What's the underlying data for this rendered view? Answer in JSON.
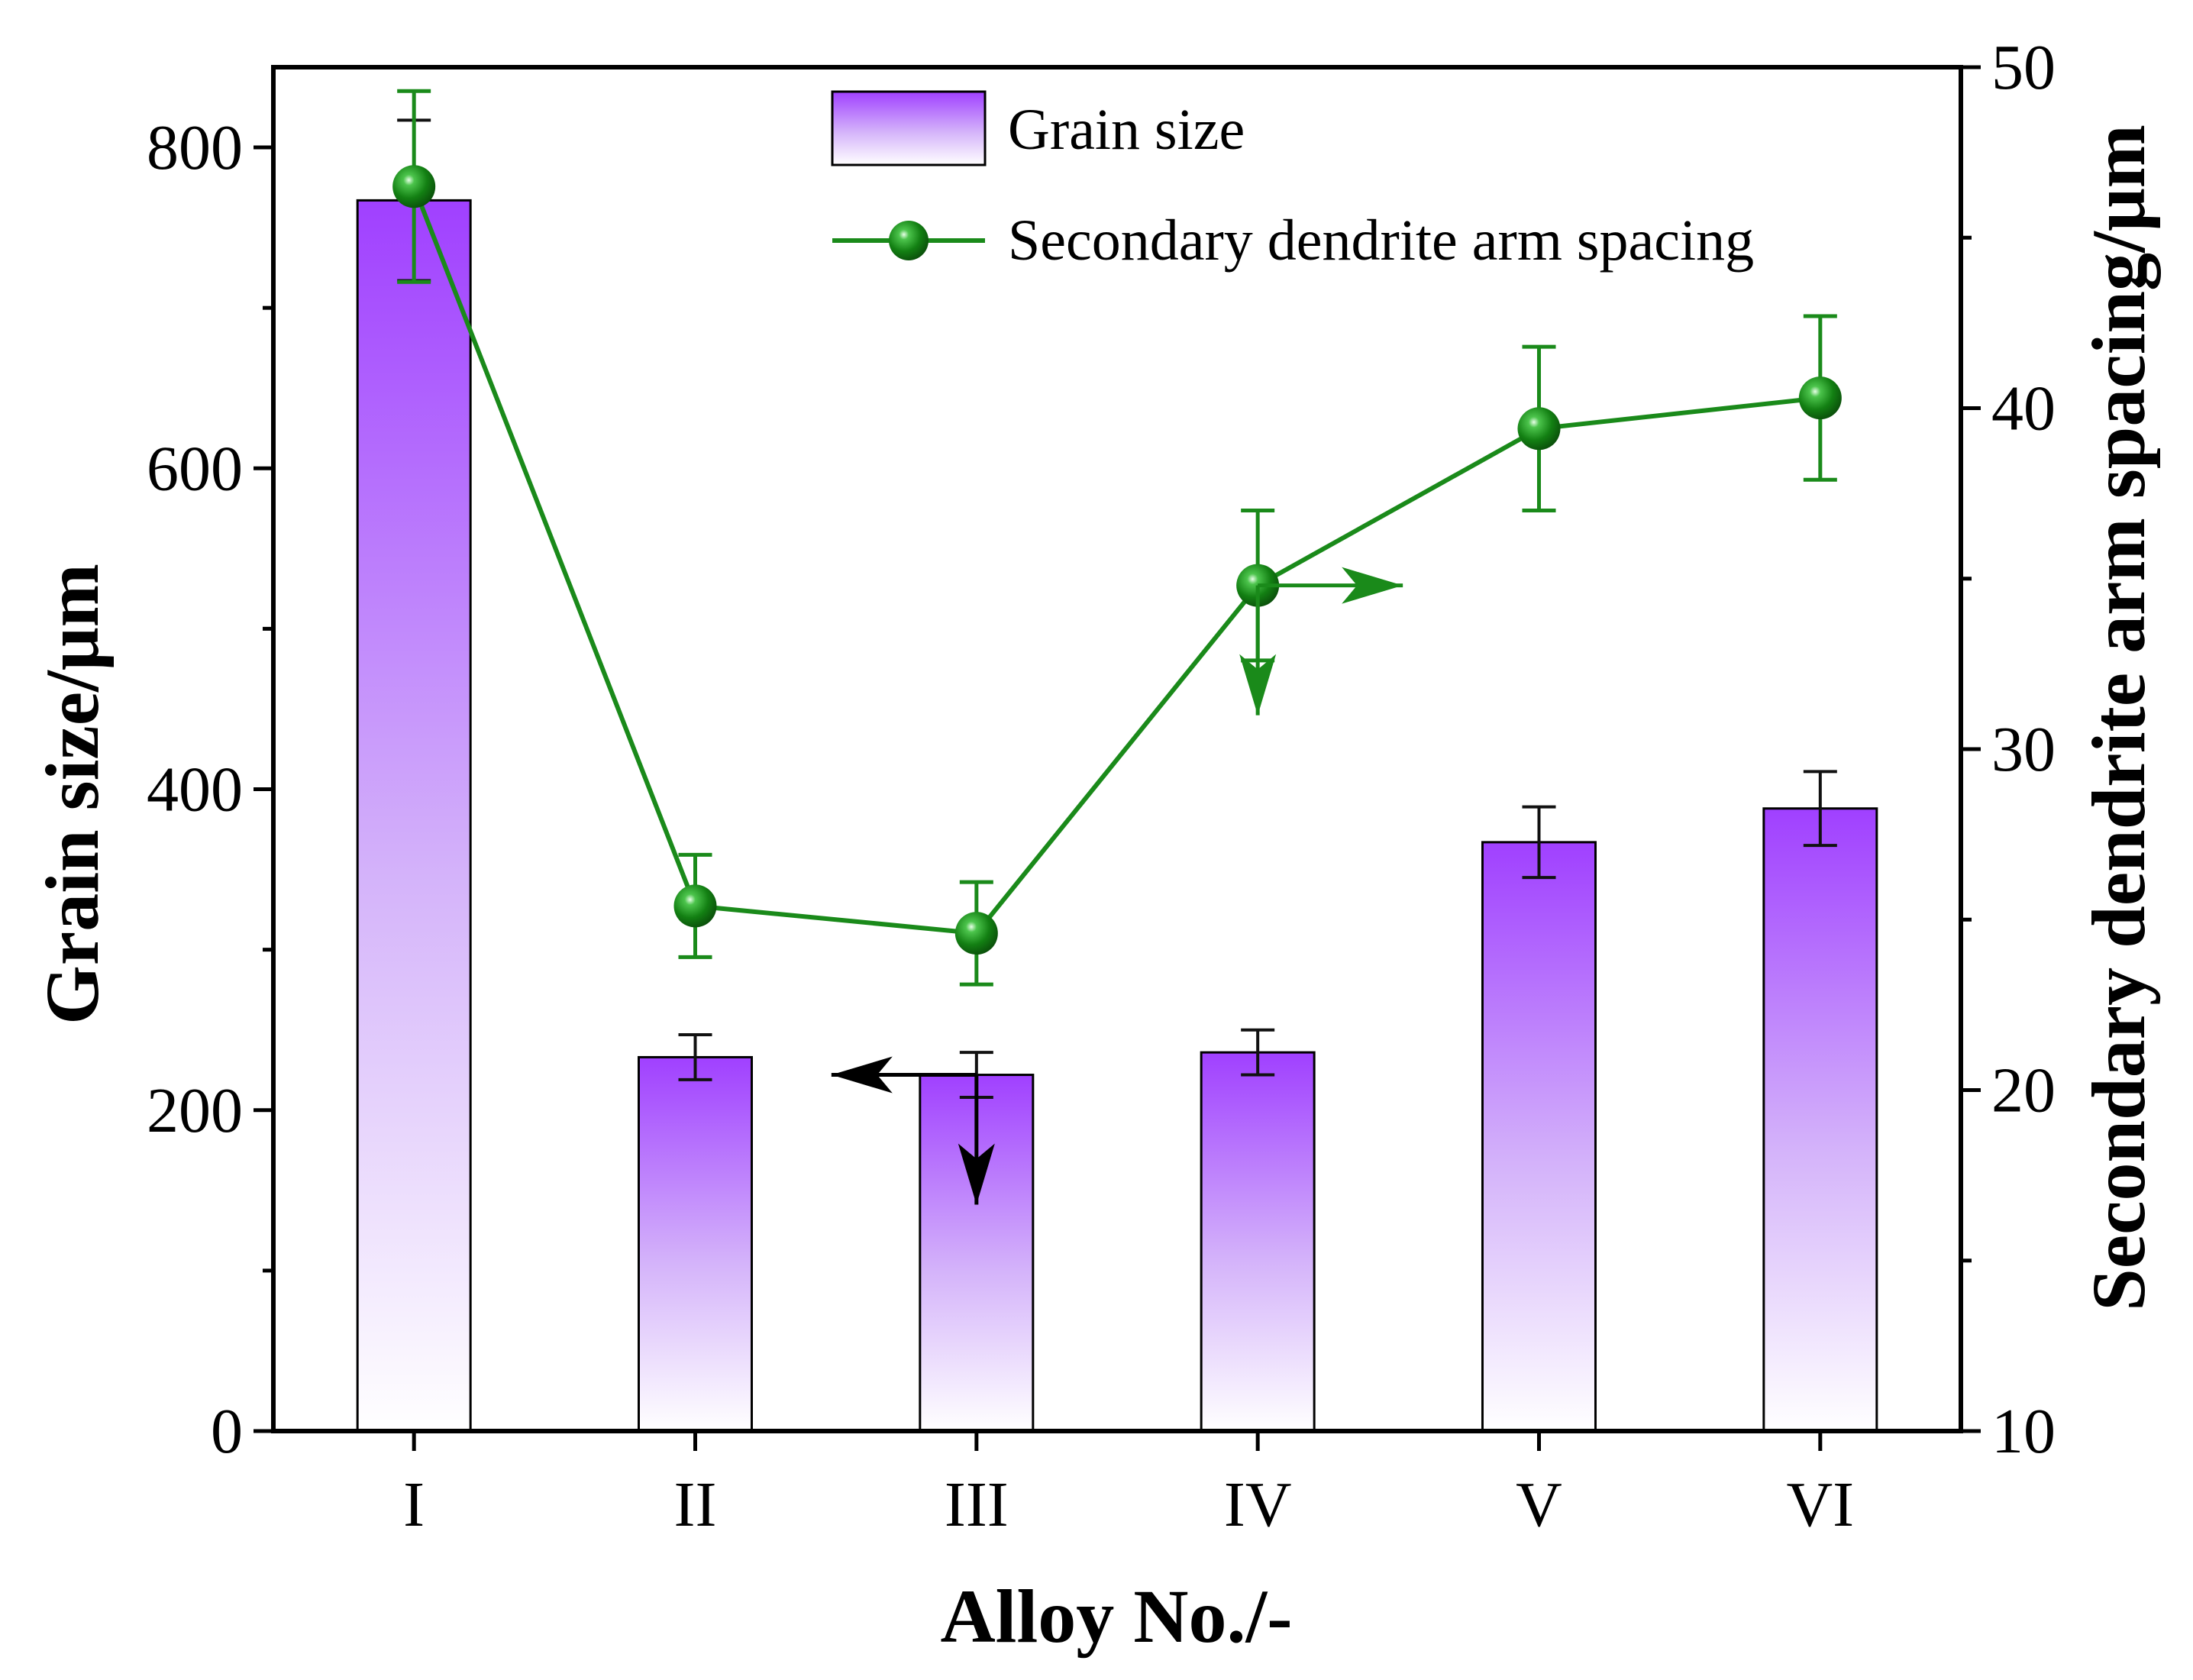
{
  "chart_data": {
    "type": "bar+line",
    "categories": [
      "I",
      "II",
      "III",
      "IV",
      "V",
      "VI"
    ],
    "xlabel": "Alloy No./-",
    "ylabel_left": "Grain size/μm",
    "ylabel_right": "Secondary dendrite arm spacing/μm",
    "ylim_left": [
      0,
      850
    ],
    "ylim_right": [
      10,
      50
    ],
    "yticks_left": [
      "0",
      "200",
      "400",
      "600",
      "800"
    ],
    "yticks_right": [
      "10",
      "20",
      "30",
      "40",
      "50"
    ],
    "series": [
      {
        "name": "Grain size",
        "kind": "bar",
        "axis": "left",
        "color": "#9B30FF",
        "values": [
          767,
          233,
          222,
          236,
          367,
          388
        ],
        "errors": [
          50,
          14,
          14,
          14,
          22,
          23
        ]
      },
      {
        "name": "Secondary dendrite arm spacing",
        "kind": "line",
        "axis": "right",
        "color": "#1A8A1A",
        "values": [
          46.5,
          25.4,
          24.6,
          34.8,
          39.4,
          40.3
        ],
        "errors": [
          2.8,
          1.5,
          1.5,
          2.2,
          2.4,
          2.4
        ]
      }
    ],
    "legend": [
      "Grain size",
      "Secondary dendrite arm spacing"
    ],
    "legend_position": "top-right",
    "annotations": [
      {
        "series": "Secondary dendrite arm spacing",
        "note": "arrows point to right axis"
      },
      {
        "series": "Grain size",
        "note": "arrows point to left axis"
      }
    ]
  }
}
